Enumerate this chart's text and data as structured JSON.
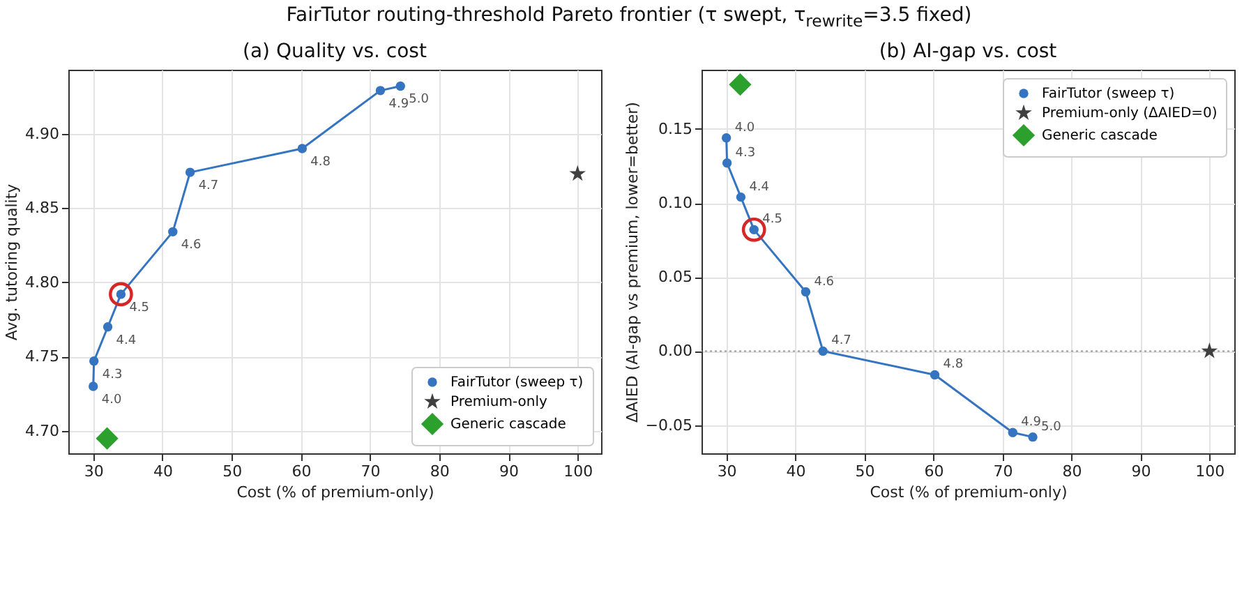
{
  "chart_data": [
    {
      "type": "line",
      "title": "(a) Quality vs. cost",
      "xlabel": "Cost (% of premium-only)",
      "ylabel": "Avg. tutoring quality",
      "xlim": [
        26.4,
        103.4
      ],
      "ylim": [
        4.685,
        4.943
      ],
      "xticks": [
        30,
        40,
        50,
        60,
        70,
        80,
        90,
        100
      ],
      "yticks": [
        {
          "value": 4.7,
          "label": "4.70"
        },
        {
          "value": 4.75,
          "label": "4.75"
        },
        {
          "value": 4.8,
          "label": "4.80"
        },
        {
          "value": 4.85,
          "label": "4.85"
        },
        {
          "value": 4.9,
          "label": "4.90"
        }
      ],
      "grid": true,
      "legend": "bottom right",
      "annotations": [
        "FairTutor routing-threshold Pareto frontier (τ swept, τ$_{rewrite}$=3.5 fixed)",
        {
          "text": "4.0",
          "x": 30.0,
          "y": 4.73
        },
        {
          "text": "4.3",
          "x": 30.1,
          "y": 4.747
        },
        {
          "text": "4.4",
          "x": 32.1,
          "y": 4.77
        },
        {
          "text": "4.5",
          "x": 34.0,
          "y": 4.792
        },
        {
          "text": "4.6",
          "x": 41.5,
          "y": 4.834
        },
        {
          "text": "4.7",
          "x": 44.0,
          "y": 4.874
        },
        {
          "text": "4.8",
          "x": 60.2,
          "y": 4.89
        },
        {
          "text": "4.9",
          "x": 71.5,
          "y": 4.929
        },
        {
          "text": "5.0",
          "x": 74.4,
          "y": 4.932
        }
      ],
      "series": [
        {
          "name": "FairTutor (sweep τ)",
          "type": "line",
          "marker": "circle",
          "color": "#3474c0",
          "x": [
            30.0,
            30.1,
            32.1,
            34.0,
            41.5,
            44.0,
            60.2,
            71.5,
            74.4
          ],
          "values": [
            4.73,
            4.747,
            4.77,
            4.792,
            4.834,
            4.874,
            4.89,
            4.929,
            4.932
          ]
        },
        {
          "name": "Premium-only",
          "type": "scatter",
          "marker": "star",
          "color": "#404040",
          "x": [
            100
          ],
          "values": [
            4.873
          ]
        },
        {
          "name": "Generic cascade",
          "type": "scatter",
          "marker": "diamond",
          "color": "#2ca02c",
          "x": [
            32.0
          ],
          "values": [
            4.695
          ]
        },
        {
          "type": "scatter",
          "marker": "circle",
          "color": "#d62728",
          "x": [
            34.0
          ],
          "values": [
            4.792
          ]
        }
      ]
    },
    {
      "type": "line",
      "title": "(b) AI-gap vs. cost",
      "xlabel": "Cost (% of premium-only)",
      "ylabel": "ΔAIED  (AI-gap vs premium, lower=better)",
      "xlim": [
        26.4,
        103.6
      ],
      "ylim": [
        -0.069,
        0.19
      ],
      "xticks": [
        30,
        40,
        50,
        60,
        70,
        80,
        90,
        100
      ],
      "yticks": [
        {
          "value": -0.05,
          "label": "−0.05"
        },
        {
          "value": 0,
          "label": "0.00"
        },
        {
          "value": 0.05,
          "label": "0.05"
        },
        {
          "value": 0.1,
          "label": "0.10"
        },
        {
          "value": 0.15,
          "label": "0.15"
        }
      ],
      "grid": true,
      "legend": "top right",
      "ref_lines": [
        {
          "axis": "y",
          "value": 0,
          "color": "#999999",
          "line_style": "dotted"
        }
      ],
      "annotations": [
        {
          "text": "4.0",
          "x": 30.0,
          "y": 0.144
        },
        {
          "text": "4.3",
          "x": 30.1,
          "y": 0.127
        },
        {
          "text": "4.4",
          "x": 32.1,
          "y": 0.104
        },
        {
          "text": "4.5",
          "x": 34.0,
          "y": 0.082
        },
        {
          "text": "4.6",
          "x": 41.5,
          "y": 0.04
        },
        {
          "text": "4.7",
          "x": 44.0,
          "y": 0.0
        },
        {
          "text": "4.8",
          "x": 60.2,
          "y": -0.016
        },
        {
          "text": "4.9",
          "x": 71.5,
          "y": -0.055
        },
        {
          "text": "5.0",
          "x": 74.4,
          "y": -0.058
        }
      ],
      "series": [
        {
          "name": "FairTutor (sweep τ)",
          "type": "line",
          "marker": "circle",
          "color": "#3474c0",
          "x": [
            30.0,
            30.1,
            32.1,
            34.0,
            41.5,
            44.0,
            60.2,
            71.5,
            74.4
          ],
          "values": [
            0.144,
            0.127,
            0.104,
            0.082,
            0.04,
            0.0,
            -0.016,
            -0.055,
            -0.058
          ]
        },
        {
          "name": "Premium-only (ΔAIED=0)",
          "type": "scatter",
          "marker": "star",
          "color": "#404040",
          "x": [
            100
          ],
          "values": [
            0
          ]
        },
        {
          "name": "Generic cascade",
          "type": "scatter",
          "marker": "diamond",
          "color": "#2ca02c",
          "x": [
            32.0
          ],
          "values": [
            0.18
          ]
        },
        {
          "type": "scatter",
          "marker": "circle",
          "color": "#d62728",
          "x": [
            34.0
          ],
          "values": [
            0.082
          ]
        }
      ]
    }
  ]
}
